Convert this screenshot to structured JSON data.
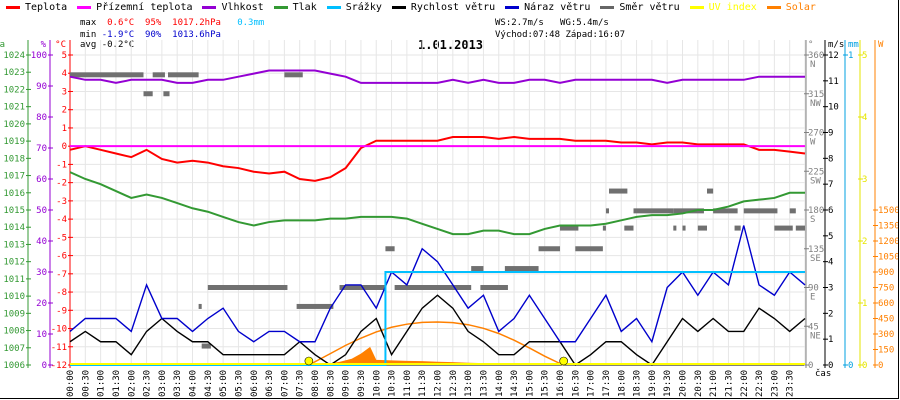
{
  "legend": [
    {
      "label": "Teplota",
      "color": "#ff0000"
    },
    {
      "label": "Přízemní teplota",
      "color": "#ff00ff"
    },
    {
      "label": "Vlhkost",
      "color": "#9400d3"
    },
    {
      "label": "Tlak",
      "color": "#339933"
    },
    {
      "label": "Srážky",
      "color": "#00bfff"
    },
    {
      "label": "Rychlost větru",
      "color": "#000000"
    },
    {
      "label": "Náraz větru",
      "color": "#0000cc"
    },
    {
      "label": "Směr větru",
      "color": "#666666"
    },
    {
      "label": "UV index",
      "color": "#ffff00"
    },
    {
      "label": "Solar",
      "color": "#ff8000"
    }
  ],
  "stats": {
    "max_label": "max",
    "max_temp": "0.6°C",
    "max_hum": "95%",
    "max_press": "1017.2hPa",
    "max_rain": "0.3mm",
    "min_label": "min",
    "min_temp": "-1.9°C",
    "min_hum": "90%",
    "min_press": "1013.6hPa",
    "avg_label": "avg",
    "avg_temp": "-0.2°C",
    "ws": "WS:2.7m/s",
    "wg": "WG:5.4m/s",
    "sunrise": "Východ:07:48",
    "sunset": "Západ:16:07"
  },
  "chart_data": {
    "type": "line",
    "title": "1.01.2013",
    "xlabel": "čas",
    "x_hours_start": 0,
    "x_hours_step": 0.5,
    "x_tick_labels": [
      "00:00",
      "00:30",
      "01:00",
      "01:30",
      "02:00",
      "02:30",
      "03:00",
      "03:30",
      "04:00",
      "04:30",
      "05:00",
      "05:30",
      "06:00",
      "06:30",
      "07:00",
      "07:30",
      "08:00",
      "08:30",
      "09:00",
      "09:30",
      "10:00",
      "10:30",
      "11:00",
      "11:30",
      "12:00",
      "12:30",
      "13:00",
      "13:30",
      "14:00",
      "14:30",
      "15:00",
      "15:30",
      "16:00",
      "16:30",
      "17:00",
      "17:30",
      "18:00",
      "18:30",
      "19:00",
      "19:30",
      "20:00",
      "20:30",
      "21:00",
      "21:30",
      "22:00",
      "22:30",
      "23:00",
      "23:30"
    ],
    "axes": {
      "press": {
        "unit": "hPa",
        "range": [
          1006,
          1024
        ],
        "step": 1,
        "color": "#339933"
      },
      "hum": {
        "unit": "%",
        "range": [
          0,
          100
        ],
        "step": 10,
        "color": "#9400d3"
      },
      "temp": {
        "unit": "°C",
        "range": [
          -12,
          5
        ],
        "step": 1,
        "color": "#ff0000"
      },
      "dir": {
        "unit": "°",
        "range": [
          0,
          360
        ],
        "step": 45,
        "color": "#808080",
        "compass": [
          "",
          "NE",
          "E",
          "SE",
          "S",
          "SW",
          "W",
          "NW",
          "N"
        ]
      },
      "wind": {
        "unit": "m/s",
        "range": [
          0,
          12
        ],
        "step": 1,
        "color": "#000000"
      },
      "rain": {
        "unit": "mm",
        "range": [
          0,
          1
        ],
        "step": 1,
        "color": "#00a0e0"
      },
      "uv": {
        "unit": "",
        "range": [
          0,
          5
        ],
        "step": 1,
        "color": "#e6e600"
      },
      "solar": {
        "unit": "W",
        "range": [
          0,
          3000
        ],
        "tick_max": 1500,
        "step": 150,
        "color": "#ff8000"
      }
    },
    "series": [
      {
        "name": "Teplota",
        "axis": "temp",
        "color": "#ff0000",
        "values": [
          -0.2,
          0.0,
          -0.2,
          -0.4,
          -0.6,
          -0.2,
          -0.7,
          -0.9,
          -0.8,
          -0.9,
          -1.1,
          -1.2,
          -1.4,
          -1.5,
          -1.4,
          -1.8,
          -1.9,
          -1.7,
          -1.2,
          -0.1,
          0.3,
          0.3,
          0.3,
          0.3,
          0.3,
          0.5,
          0.5,
          0.5,
          0.4,
          0.5,
          0.4,
          0.4,
          0.4,
          0.3,
          0.3,
          0.3,
          0.2,
          0.2,
          0.1,
          0.2,
          0.2,
          0.1,
          0.1,
          0.1,
          0.1,
          -0.2,
          -0.2,
          -0.3,
          -0.4
        ]
      },
      {
        "name": "Přízemní teplota",
        "axis": "temp",
        "color": "#ff00ff",
        "values": [
          0,
          0,
          0,
          0,
          0,
          0,
          0,
          0,
          0,
          0,
          0,
          0,
          0,
          0,
          0,
          0,
          0,
          0,
          0,
          0,
          0,
          0,
          0,
          0,
          0,
          0,
          0,
          0,
          0,
          0,
          0,
          0,
          0,
          0,
          0,
          0,
          0,
          0,
          0,
          0,
          0,
          0,
          0,
          0,
          0,
          0,
          0,
          0,
          0
        ]
      },
      {
        "name": "Vlhkost",
        "axis": "hum",
        "color": "#9400d3",
        "values": [
          93,
          92,
          92,
          91,
          92,
          92,
          92,
          91,
          91,
          92,
          92,
          93,
          94,
          95,
          95,
          95,
          95,
          94,
          93,
          91,
          91,
          91,
          91,
          91,
          91,
          92,
          91,
          92,
          91,
          91,
          92,
          92,
          91,
          92,
          92,
          92,
          92,
          92,
          92,
          91,
          92,
          92,
          92,
          92,
          92,
          93,
          93,
          93,
          93
        ]
      },
      {
        "name": "Tlak",
        "axis": "press",
        "color": "#339933",
        "values": [
          1017.2,
          1016.8,
          1016.5,
          1016.1,
          1015.7,
          1015.9,
          1015.7,
          1015.4,
          1015.1,
          1014.9,
          1014.6,
          1014.3,
          1014.1,
          1014.3,
          1014.4,
          1014.4,
          1014.4,
          1014.5,
          1014.5,
          1014.6,
          1014.6,
          1014.6,
          1014.5,
          1014.2,
          1013.9,
          1013.6,
          1013.6,
          1013.8,
          1013.8,
          1013.6,
          1013.6,
          1013.9,
          1014.1,
          1014.1,
          1014.1,
          1014.2,
          1014.4,
          1014.6,
          1014.7,
          1014.7,
          1014.8,
          1015.0,
          1015.0,
          1015.2,
          1015.5,
          1015.6,
          1015.7,
          1016.0,
          1016.0
        ]
      },
      {
        "name": "Rychlost větru",
        "axis": "wind",
        "color": "#000000",
        "values": [
          0.9,
          1.3,
          0.9,
          0.9,
          0.4,
          1.3,
          1.8,
          1.3,
          0.9,
          0.9,
          0.4,
          0.4,
          0.4,
          0.4,
          0.4,
          0.9,
          0.4,
          0,
          0.4,
          1.3,
          1.8,
          0.4,
          1.3,
          2.2,
          2.7,
          2.2,
          1.3,
          0.9,
          0.4,
          0.4,
          0.9,
          0.9,
          0.9,
          0,
          0.4,
          0.9,
          0.9,
          0.4,
          0,
          0.9,
          1.8,
          1.3,
          1.8,
          1.3,
          1.3,
          2.2,
          1.8,
          1.3,
          1.8
        ]
      },
      {
        "name": "Náraz větru",
        "axis": "wind",
        "color": "#0000cc",
        "values": [
          1.3,
          1.8,
          1.8,
          1.8,
          1.3,
          3.1,
          1.8,
          1.8,
          1.3,
          1.8,
          2.2,
          1.3,
          0.9,
          1.3,
          1.3,
          0.9,
          0.9,
          2.2,
          3.1,
          3.1,
          2.2,
          3.6,
          3.1,
          4.5,
          4.0,
          3.1,
          2.2,
          2.7,
          1.3,
          1.8,
          2.7,
          1.8,
          0.9,
          0.9,
          1.8,
          2.7,
          1.3,
          1.8,
          0.9,
          3.0,
          3.6,
          2.7,
          3.6,
          3.1,
          5.4,
          3.1,
          2.7,
          3.6,
          3.1
        ]
      }
    ],
    "rain_points": [
      [
        0,
        0
      ],
      [
        10.3,
        0
      ],
      [
        10.3,
        0.3
      ],
      [
        24,
        0.3
      ]
    ],
    "solar_actual_points": [
      [
        7.8,
        0
      ],
      [
        8.3,
        10
      ],
      [
        8.8,
        30
      ],
      [
        9.2,
        60
      ],
      [
        9.5,
        110
      ],
      [
        9.8,
        175
      ],
      [
        10.0,
        50
      ],
      [
        10.5,
        45
      ],
      [
        11,
        40
      ],
      [
        11.5,
        38
      ],
      [
        12,
        32
      ],
      [
        12.5,
        28
      ],
      [
        13,
        22
      ],
      [
        13.5,
        18
      ],
      [
        14,
        14
      ],
      [
        14.5,
        10
      ],
      [
        15,
        6
      ],
      [
        15.5,
        2
      ],
      [
        15.8,
        0
      ]
    ],
    "solar_theoretical_points": [
      [
        7.8,
        0
      ],
      [
        8.5,
        110
      ],
      [
        9,
        190
      ],
      [
        9.5,
        260
      ],
      [
        10,
        320
      ],
      [
        10.5,
        365
      ],
      [
        11,
        395
      ],
      [
        11.5,
        412
      ],
      [
        12,
        416
      ],
      [
        12.5,
        410
      ],
      [
        13,
        390
      ],
      [
        13.5,
        355
      ],
      [
        14,
        305
      ],
      [
        14.5,
        240
      ],
      [
        15,
        165
      ],
      [
        15.5,
        85
      ],
      [
        16.1,
        0
      ]
    ],
    "uv_points": [
      [
        0,
        0
      ],
      [
        24,
        0
      ]
    ],
    "sun_events_hours": [
      7.8,
      16.12
    ],
    "wind_direction_segments": [
      [
        0,
        2.4,
        337
      ],
      [
        2.4,
        2.7,
        315
      ],
      [
        2.7,
        3.1,
        337
      ],
      [
        3.05,
        3.25,
        315
      ],
      [
        3.2,
        4.2,
        337
      ],
      [
        4.2,
        4.3,
        68
      ],
      [
        4.3,
        4.6,
        22
      ],
      [
        4.5,
        7.1,
        90
      ],
      [
        7.0,
        7.6,
        337
      ],
      [
        7.4,
        8.6,
        68
      ],
      [
        8.8,
        10.3,
        90
      ],
      [
        10.3,
        10.6,
        135
      ],
      [
        10.6,
        13.1,
        90
      ],
      [
        13.1,
        13.5,
        112
      ],
      [
        13.4,
        14.3,
        90
      ],
      [
        14.2,
        15.3,
        112
      ],
      [
        15.3,
        16.0,
        135
      ],
      [
        16.0,
        16.6,
        159
      ],
      [
        16.5,
        17.4,
        135
      ],
      [
        17.4,
        17.5,
        159
      ],
      [
        17.5,
        17.6,
        179
      ],
      [
        17.6,
        18.2,
        202
      ],
      [
        18.1,
        18.4,
        159
      ],
      [
        18.4,
        19.7,
        179
      ],
      [
        19.7,
        19.8,
        159
      ],
      [
        19.7,
        20.0,
        179
      ],
      [
        20.0,
        20.1,
        159
      ],
      [
        20.0,
        20.7,
        179
      ],
      [
        20.5,
        20.8,
        159
      ],
      [
        20.8,
        21.0,
        202
      ],
      [
        21.0,
        21.8,
        179
      ],
      [
        21.7,
        21.9,
        159
      ],
      [
        22.0,
        23.1,
        179
      ],
      [
        23.0,
        23.6,
        159
      ],
      [
        23.5,
        23.7,
        179
      ],
      [
        23.7,
        24.0,
        159
      ]
    ]
  }
}
